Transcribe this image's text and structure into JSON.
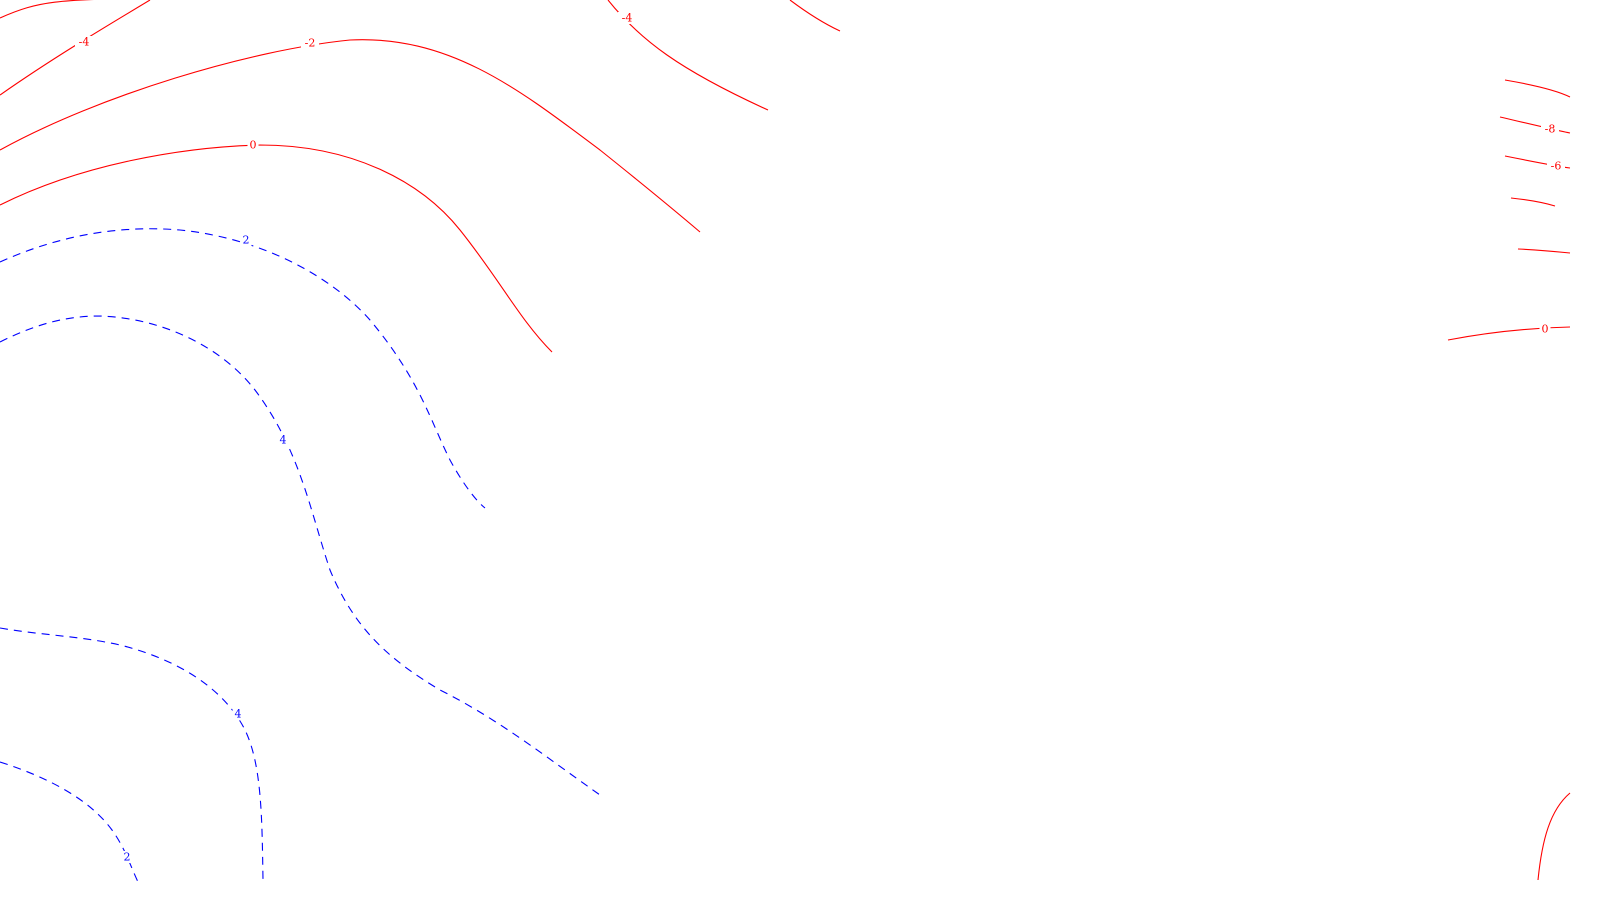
{
  "colors": {
    "negative": "#ff0000",
    "positive": "#0000ff",
    "background": "#ffffff"
  },
  "contours": {
    "negative_line_style": "solid",
    "positive_line_style": "dashed",
    "labels": [
      {
        "id": "neg4-left",
        "value": "-4",
        "sign": "neg"
      },
      {
        "id": "neg2-left",
        "value": "-2",
        "sign": "neg"
      },
      {
        "id": "zero-left",
        "value": "0",
        "sign": "neg"
      },
      {
        "id": "neg4-top",
        "value": "-4",
        "sign": "neg"
      },
      {
        "id": "neg8-right",
        "value": "-8",
        "sign": "neg"
      },
      {
        "id": "neg6-right",
        "value": "-6",
        "sign": "neg"
      },
      {
        "id": "zero-right",
        "value": "0",
        "sign": "neg"
      },
      {
        "id": "pos2-upper",
        "value": "2",
        "sign": "pos"
      },
      {
        "id": "pos4-upper",
        "value": "4",
        "sign": "pos"
      },
      {
        "id": "pos4-lower",
        "value": "4",
        "sign": "pos"
      },
      {
        "id": "pos2-lower",
        "value": "2",
        "sign": "pos"
      }
    ]
  }
}
